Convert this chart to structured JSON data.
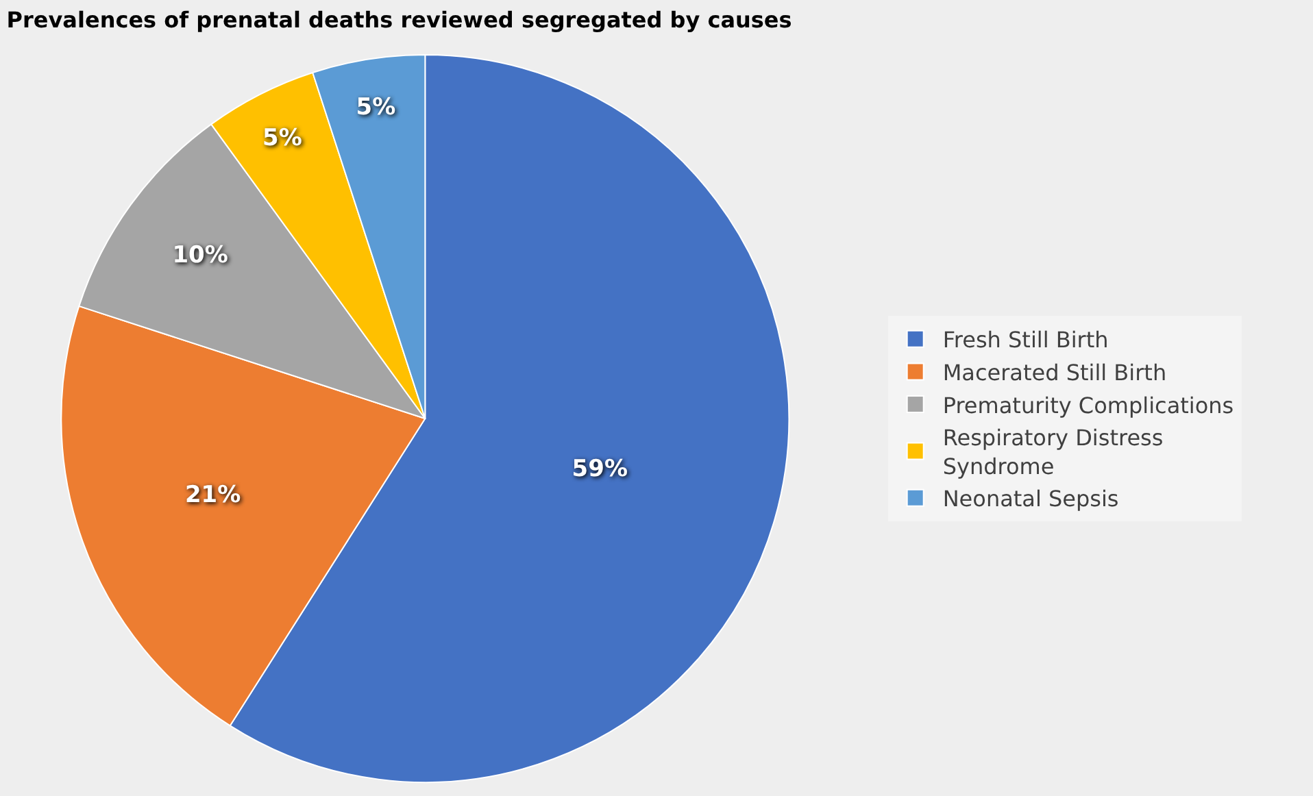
{
  "chart_data": {
    "type": "pie",
    "title": "Prevalences of prenatal deaths reviewed segregated by causes",
    "categories": [
      "Fresh Still Birth",
      "Macerated Still Birth",
      "Prematurity Complications",
      "Respiratory Distress Syndrome",
      "Neonatal Sepsis"
    ],
    "values": [
      59,
      21,
      10,
      5,
      5
    ],
    "colors": [
      "#4472c4",
      "#ed7d31",
      "#a5a5a5",
      "#ffc000",
      "#5b9bd5"
    ],
    "value_labels": [
      "59%",
      "21%",
      "10%",
      "5%",
      "5%"
    ],
    "legend": "right"
  }
}
